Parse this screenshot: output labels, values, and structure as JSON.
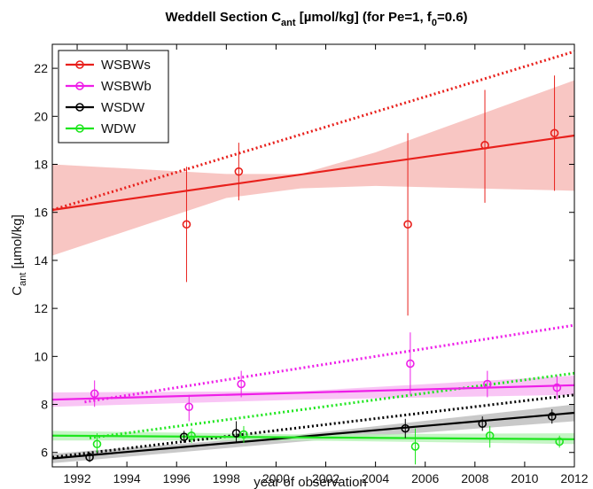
{
  "chart_data": {
    "type": "line",
    "title": "Weddell Section C_ant [µmol/kg] (for Pe=1, f_0=0.6)",
    "title_parts": {
      "a": "Weddell Section C",
      "b": "ant",
      "c": " [",
      "mu": "µ",
      "d": "mol/kg] (for Pe=1, f",
      "e": "0",
      "f": "=0.6)"
    },
    "xlabel": "year of observation",
    "ylabel": "C_ant [µmol/kg]",
    "ylabel_parts": {
      "c": "C",
      "sub": "ant",
      "rest1": " [",
      "mu": "µ",
      "rest2": "mol/kg]"
    },
    "xlim": [
      1991,
      2012
    ],
    "ylim": [
      5.4,
      23
    ],
    "xticks": [
      1992,
      1994,
      1996,
      1998,
      2000,
      2002,
      2004,
      2006,
      2008,
      2010,
      2012
    ],
    "yticks": [
      6,
      8,
      10,
      12,
      14,
      16,
      18,
      20,
      22
    ],
    "grid": false,
    "legend_position": "top-left",
    "series": [
      {
        "name": "WSBWs",
        "color": "#e8201c",
        "band_color": "#f6b8b4",
        "points": [
          {
            "x": 1996.4,
            "y": 15.5,
            "lo": 13.1,
            "hi": 17.9
          },
          {
            "x": 1998.5,
            "y": 17.7,
            "lo": 16.5,
            "hi": 18.9
          },
          {
            "x": 2005.3,
            "y": 15.5,
            "lo": 11.7,
            "hi": 19.3
          },
          {
            "x": 2008.4,
            "y": 18.8,
            "lo": 16.4,
            "hi": 21.1
          },
          {
            "x": 2011.2,
            "y": 19.3,
            "lo": 16.9,
            "hi": 21.7
          }
        ],
        "fit": [
          [
            1991,
            16.1
          ],
          [
            2012,
            19.2
          ]
        ],
        "band": {
          "x": [
            1991,
            1998,
            2001,
            2004,
            2012
          ],
          "lo": [
            14.2,
            16.6,
            17.0,
            17.1,
            16.9
          ],
          "hi": [
            18.0,
            17.6,
            17.6,
            18.5,
            21.5
          ]
        },
        "dotted": [
          [
            1991,
            16.1
          ],
          [
            2012,
            22.7
          ]
        ]
      },
      {
        "name": "WSBWb",
        "color": "#ee1ee8",
        "band_color": "#f7b6f2",
        "points": [
          {
            "x": 1992.7,
            "y": 8.45,
            "lo": 7.9,
            "hi": 9.0
          },
          {
            "x": 1996.5,
            "y": 7.9,
            "lo": 7.3,
            "hi": 8.4
          },
          {
            "x": 1998.6,
            "y": 8.85,
            "lo": 8.3,
            "hi": 9.4
          },
          {
            "x": 2005.4,
            "y": 9.7,
            "lo": 8.4,
            "hi": 11.0
          },
          {
            "x": 2008.5,
            "y": 8.85,
            "lo": 8.3,
            "hi": 9.4
          },
          {
            "x": 2011.3,
            "y": 8.7,
            "lo": 8.2,
            "hi": 9.2
          }
        ],
        "fit": [
          [
            1991,
            8.2
          ],
          [
            2012,
            8.8
          ]
        ],
        "band": {
          "x": [
            1991,
            2001,
            2012
          ],
          "lo": [
            7.9,
            8.2,
            8.4
          ],
          "hi": [
            8.5,
            8.55,
            9.2
          ]
        },
        "dotted": [
          [
            1992.3,
            8.1
          ],
          [
            2012,
            11.3
          ]
        ]
      },
      {
        "name": "WSDW",
        "color": "#000000",
        "band_color": "#bcbcbc",
        "points": [
          {
            "x": 1992.5,
            "y": 5.8,
            "lo": 5.6,
            "hi": 6.0
          },
          {
            "x": 1996.3,
            "y": 6.65,
            "lo": 6.4,
            "hi": 6.9
          },
          {
            "x": 1998.4,
            "y": 6.8,
            "lo": 6.4,
            "hi": 7.3
          },
          {
            "x": 2005.2,
            "y": 7.0,
            "lo": 6.6,
            "hi": 7.4
          },
          {
            "x": 2008.3,
            "y": 7.2,
            "lo": 6.9,
            "hi": 7.5
          },
          {
            "x": 2011.1,
            "y": 7.5,
            "lo": 7.2,
            "hi": 7.8
          }
        ],
        "fit": [
          [
            1991,
            5.75
          ],
          [
            2012,
            7.65
          ]
        ],
        "band": {
          "x": [
            1991,
            2001,
            2012
          ],
          "lo": [
            5.55,
            6.45,
            7.3
          ],
          "hi": [
            5.95,
            6.75,
            8.0
          ]
        },
        "dotted": [
          [
            1991,
            5.8
          ],
          [
            2012,
            8.4
          ]
        ]
      },
      {
        "name": "WDW",
        "color": "#1ee61e",
        "band_color": "#b6f2b6",
        "points": [
          {
            "x": 1992.8,
            "y": 6.35,
            "lo": 6.0,
            "hi": 6.8
          },
          {
            "x": 1996.6,
            "y": 6.7,
            "lo": 6.4,
            "hi": 7.0
          },
          {
            "x": 1998.7,
            "y": 6.75,
            "lo": 6.4,
            "hi": 7.1
          },
          {
            "x": 2005.6,
            "y": 6.25,
            "lo": 5.5,
            "hi": 7.0
          },
          {
            "x": 2008.6,
            "y": 6.7,
            "lo": 6.2,
            "hi": 7.1
          },
          {
            "x": 2011.4,
            "y": 6.45,
            "lo": 6.2,
            "hi": 6.7
          }
        ],
        "fit": [
          [
            1991,
            6.7
          ],
          [
            2012,
            6.55
          ]
        ],
        "band": {
          "x": [
            1991,
            2001,
            2012
          ],
          "lo": [
            6.5,
            6.5,
            6.35
          ],
          "hi": [
            6.9,
            6.75,
            6.8
          ]
        },
        "dotted": [
          [
            1992.5,
            6.6
          ],
          [
            2012,
            9.3
          ]
        ]
      }
    ]
  }
}
